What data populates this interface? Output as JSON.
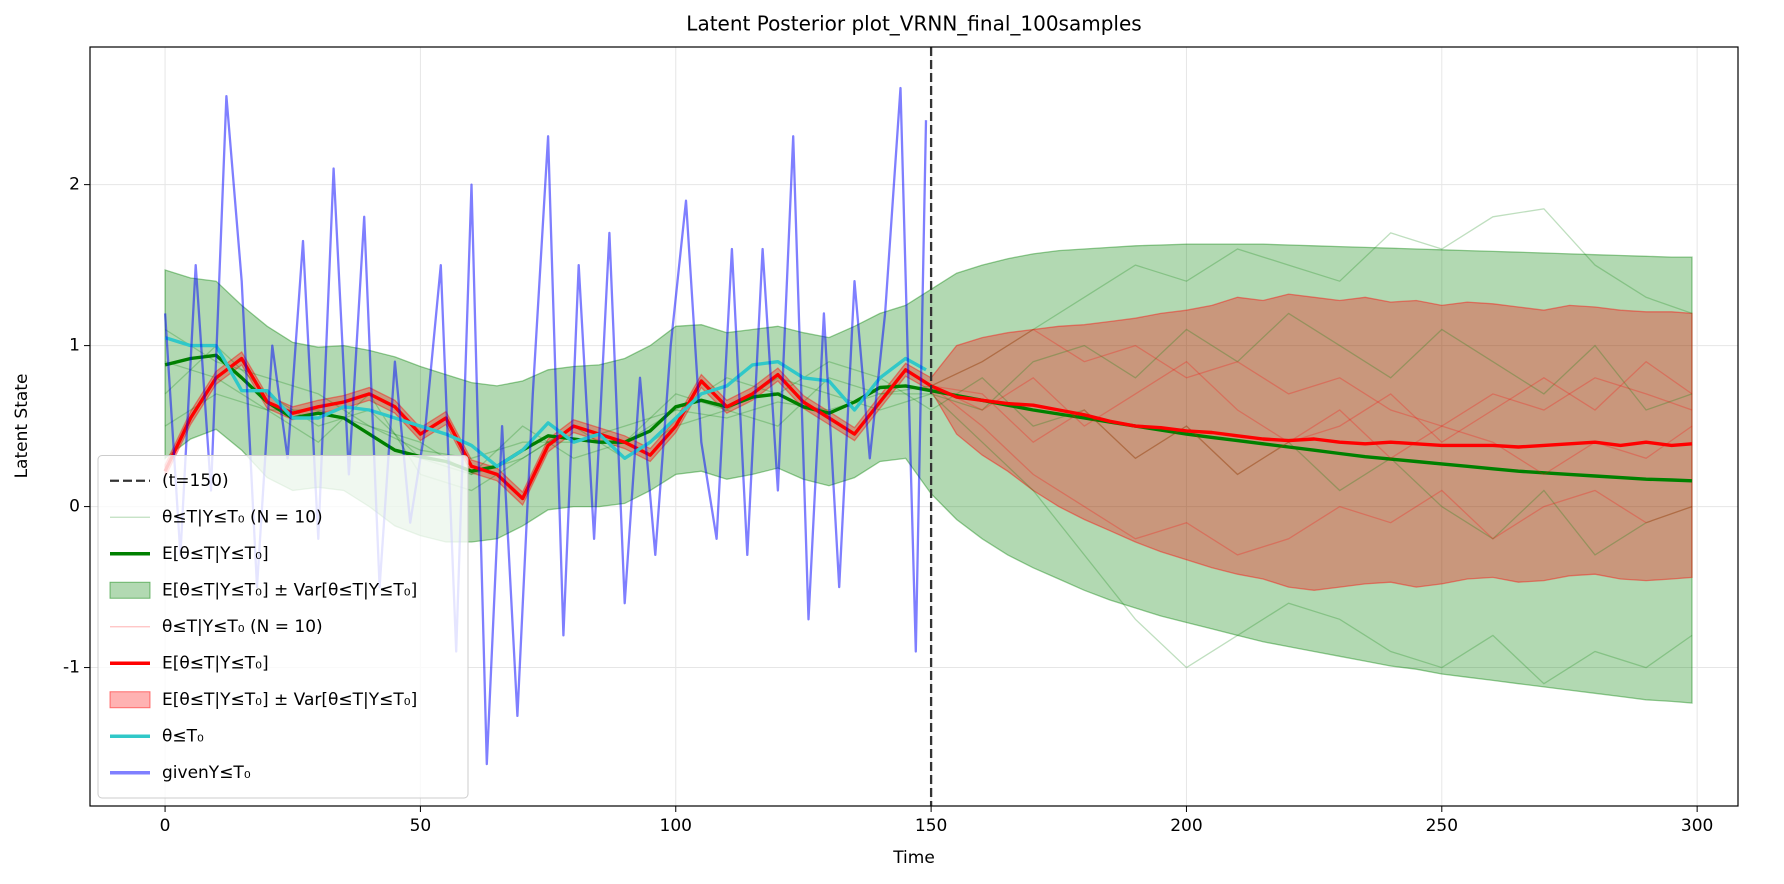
{
  "chart_data": {
    "type": "line",
    "title": "Latent Posterior plot_VRNN_final_100samples",
    "xlabel": "Time",
    "ylabel": "Latent State",
    "xlim": [
      -14.7,
      308
    ],
    "ylim": [
      -1.86,
      2.855
    ],
    "xticks": [
      0,
      50,
      100,
      150,
      200,
      250,
      300
    ],
    "yticks": [
      -1,
      0,
      1,
      2
    ],
    "grid": true,
    "legend": "lower left",
    "vline": {
      "name": "(t=150)",
      "x": 150,
      "color": "#333333"
    },
    "x": [
      0,
      5,
      10,
      15,
      20,
      25,
      30,
      35,
      40,
      45,
      50,
      55,
      60,
      65,
      70,
      75,
      80,
      85,
      90,
      95,
      100,
      105,
      110,
      115,
      120,
      125,
      130,
      135,
      140,
      145,
      150,
      155,
      160,
      165,
      170,
      175,
      180,
      185,
      190,
      195,
      200,
      205,
      210,
      215,
      220,
      225,
      230,
      235,
      240,
      245,
      250,
      255,
      260,
      265,
      270,
      275,
      280,
      285,
      290,
      295,
      299
    ],
    "series": [
      {
        "kind": "samples",
        "name": "θ≤T|Y≤T₀ (N = 10)",
        "color": "#008000",
        "alpha": 0.25,
        "x": [
          0,
          10,
          20,
          30,
          40,
          50,
          60,
          70,
          80,
          90,
          100,
          110,
          120,
          130,
          140,
          150,
          160,
          170,
          180,
          190,
          200,
          210,
          220,
          230,
          240,
          250,
          260,
          270,
          280,
          290,
          299
        ],
        "samples": [
          [
            0.9,
            0.8,
            0.6,
            0.6,
            0.5,
            0.35,
            0.3,
            0.4,
            0.4,
            0.5,
            0.6,
            0.55,
            0.65,
            0.6,
            0.7,
            0.75,
            0.9,
            1.1,
            1.3,
            1.5,
            1.4,
            1.6,
            1.5,
            1.4,
            1.7,
            1.6,
            1.8,
            1.85,
            1.5,
            1.3,
            1.2
          ],
          [
            0.7,
            1.0,
            0.7,
            0.5,
            0.6,
            0.3,
            0.2,
            0.3,
            0.5,
            0.4,
            0.7,
            0.6,
            0.8,
            0.7,
            0.6,
            0.7,
            0.4,
            0.1,
            -0.3,
            -0.7,
            -1.0,
            -0.8,
            -0.6,
            -0.7,
            -0.9,
            -1.0,
            -0.8,
            -1.1,
            -0.9,
            -1.0,
            -0.8
          ],
          [
            1.1,
            0.9,
            0.8,
            0.7,
            0.5,
            0.4,
            0.2,
            0.5,
            0.3,
            0.4,
            0.6,
            0.8,
            0.7,
            0.9,
            0.8,
            0.6,
            0.8,
            0.5,
            0.6,
            0.3,
            0.5,
            0.2,
            0.4,
            0.1,
            0.3,
            0.0,
            -0.2,
            0.1,
            -0.3,
            -0.1,
            0.0
          ],
          [
            0.5,
            0.7,
            0.6,
            0.4,
            0.7,
            0.2,
            0.1,
            0.3,
            0.5,
            0.3,
            0.5,
            0.6,
            0.5,
            0.8,
            0.7,
            0.7,
            0.6,
            0.9,
            1.0,
            0.8,
            1.1,
            0.9,
            1.2,
            1.0,
            0.8,
            1.1,
            0.9,
            0.7,
            1.0,
            0.6,
            0.7
          ]
        ]
      },
      {
        "kind": "line",
        "name": "E[θ≤T|Y≤T₀]",
        "color": "#008000",
        "alpha": 1,
        "values": [
          0.88,
          0.92,
          0.94,
          0.8,
          0.65,
          0.55,
          0.58,
          0.55,
          0.45,
          0.35,
          0.31,
          0.28,
          0.22,
          0.25,
          0.35,
          0.44,
          0.42,
          0.4,
          0.4,
          0.47,
          0.62,
          0.66,
          0.62,
          0.68,
          0.7,
          0.62,
          0.58,
          0.65,
          0.74,
          0.75,
          0.72,
          0.69,
          0.66,
          0.63,
          0.6,
          0.575,
          0.55,
          0.525,
          0.5,
          0.475,
          0.45,
          0.43,
          0.41,
          0.39,
          0.37,
          0.35,
          0.33,
          0.31,
          0.295,
          0.28,
          0.265,
          0.25,
          0.235,
          0.22,
          0.21,
          0.2,
          0.19,
          0.18,
          0.17,
          0.165,
          0.16
        ]
      },
      {
        "kind": "band",
        "name": "E[θ≤T|Y≤T₀] ± Var[θ≤T|Y≤T₀]",
        "color": "#008000",
        "alpha": 0.3,
        "upper": [
          1.47,
          1.42,
          1.4,
          1.25,
          1.12,
          1.02,
          0.99,
          1.0,
          0.97,
          0.93,
          0.87,
          0.82,
          0.77,
          0.75,
          0.78,
          0.85,
          0.87,
          0.88,
          0.92,
          1.0,
          1.12,
          1.13,
          1.08,
          1.1,
          1.12,
          1.08,
          1.05,
          1.12,
          1.2,
          1.25,
          1.35,
          1.45,
          1.5,
          1.54,
          1.57,
          1.59,
          1.6,
          1.61,
          1.62,
          1.625,
          1.63,
          1.63,
          1.63,
          1.63,
          1.625,
          1.62,
          1.615,
          1.61,
          1.605,
          1.6,
          1.595,
          1.59,
          1.585,
          1.58,
          1.575,
          1.57,
          1.565,
          1.56,
          1.555,
          1.55,
          1.55
        ],
        "lower": [
          0.3,
          0.42,
          0.48,
          0.35,
          0.18,
          0.1,
          0.12,
          0.1,
          0.0,
          -0.12,
          -0.18,
          -0.22,
          -0.22,
          -0.2,
          -0.12,
          -0.02,
          0.0,
          0.0,
          0.02,
          0.1,
          0.2,
          0.22,
          0.17,
          0.2,
          0.24,
          0.17,
          0.13,
          0.18,
          0.28,
          0.3,
          0.08,
          -0.08,
          -0.2,
          -0.3,
          -0.38,
          -0.45,
          -0.52,
          -0.58,
          -0.63,
          -0.68,
          -0.72,
          -0.76,
          -0.8,
          -0.84,
          -0.87,
          -0.9,
          -0.93,
          -0.96,
          -0.99,
          -1.01,
          -1.04,
          -1.06,
          -1.08,
          -1.1,
          -1.12,
          -1.14,
          -1.16,
          -1.18,
          -1.2,
          -1.21,
          -1.22
        ]
      },
      {
        "kind": "samples",
        "name": "θ≤T|Y≤T₀ (N = 10)",
        "color": "#ff0000",
        "alpha": 0.25,
        "x": [
          150,
          160,
          170,
          180,
          190,
          200,
          210,
          220,
          230,
          240,
          250,
          260,
          270,
          280,
          290,
          299
        ],
        "samples": [
          [
            0.75,
            0.9,
            1.1,
            0.9,
            1.0,
            0.8,
            0.9,
            0.7,
            0.8,
            0.6,
            0.5,
            0.7,
            0.6,
            0.8,
            0.7,
            0.6
          ],
          [
            0.75,
            0.5,
            0.2,
            0.0,
            -0.2,
            -0.1,
            -0.3,
            -0.2,
            0.0,
            -0.1,
            0.1,
            -0.2,
            0.0,
            0.1,
            -0.1,
            0.0
          ],
          [
            0.75,
            0.6,
            0.8,
            0.5,
            0.7,
            0.9,
            0.6,
            0.4,
            0.6,
            0.3,
            0.5,
            0.4,
            0.2,
            0.4,
            0.3,
            0.5
          ],
          [
            0.75,
            0.7,
            0.4,
            0.6,
            0.3,
            0.5,
            0.2,
            0.4,
            0.5,
            0.7,
            0.4,
            0.6,
            0.8,
            0.6,
            0.9,
            0.7
          ]
        ]
      },
      {
        "kind": "line",
        "name": "E[θ≤T|Y≤T₀]",
        "color": "#ff0000",
        "alpha": 1,
        "values": [
          0.22,
          0.55,
          0.8,
          0.92,
          0.65,
          0.58,
          0.62,
          0.65,
          0.7,
          0.62,
          0.45,
          0.55,
          0.25,
          0.2,
          0.05,
          0.38,
          0.5,
          0.45,
          0.4,
          0.32,
          0.5,
          0.78,
          0.62,
          0.7,
          0.82,
          0.65,
          0.55,
          0.45,
          0.65,
          0.85,
          0.75,
          0.68,
          0.66,
          0.64,
          0.63,
          0.6,
          0.57,
          0.53,
          0.5,
          0.49,
          0.47,
          0.46,
          0.44,
          0.42,
          0.41,
          0.42,
          0.4,
          0.39,
          0.4,
          0.39,
          0.38,
          0.38,
          0.38,
          0.37,
          0.38,
          0.39,
          0.4,
          0.38,
          0.4,
          0.38,
          0.39
        ]
      },
      {
        "kind": "band",
        "name": "E[θ≤T|Y≤T₀] ± Var[θ≤T|Y≤T₀]",
        "color": "#ff0000",
        "alpha": 0.3,
        "upper": [
          0.26,
          0.59,
          0.84,
          0.96,
          0.69,
          0.62,
          0.66,
          0.69,
          0.74,
          0.66,
          0.49,
          0.59,
          0.29,
          0.24,
          0.09,
          0.42,
          0.54,
          0.49,
          0.44,
          0.36,
          0.54,
          0.82,
          0.66,
          0.74,
          0.86,
          0.69,
          0.59,
          0.49,
          0.69,
          0.89,
          0.8,
          1.0,
          1.05,
          1.08,
          1.1,
          1.12,
          1.13,
          1.15,
          1.17,
          1.2,
          1.22,
          1.25,
          1.3,
          1.28,
          1.32,
          1.3,
          1.28,
          1.3,
          1.27,
          1.28,
          1.25,
          1.27,
          1.26,
          1.24,
          1.22,
          1.25,
          1.24,
          1.22,
          1.21,
          1.21,
          1.2
        ],
        "lower": [
          0.18,
          0.51,
          0.76,
          0.88,
          0.61,
          0.54,
          0.58,
          0.61,
          0.66,
          0.58,
          0.41,
          0.51,
          0.21,
          0.16,
          0.01,
          0.34,
          0.46,
          0.41,
          0.36,
          0.28,
          0.46,
          0.74,
          0.58,
          0.66,
          0.78,
          0.61,
          0.51,
          0.41,
          0.61,
          0.81,
          0.72,
          0.45,
          0.32,
          0.22,
          0.1,
          0.0,
          -0.08,
          -0.15,
          -0.22,
          -0.28,
          -0.33,
          -0.38,
          -0.42,
          -0.45,
          -0.5,
          -0.52,
          -0.5,
          -0.48,
          -0.47,
          -0.5,
          -0.48,
          -0.45,
          -0.44,
          -0.47,
          -0.46,
          -0.43,
          -0.42,
          -0.45,
          -0.46,
          -0.45,
          -0.44
        ]
      },
      {
        "kind": "line",
        "name": "θ≤T₀",
        "color": "#30c8c8",
        "alpha": 1,
        "x": [
          0,
          5,
          10,
          15,
          20,
          25,
          30,
          35,
          40,
          45,
          50,
          55,
          60,
          65,
          70,
          75,
          80,
          85,
          90,
          95,
          100,
          105,
          110,
          115,
          120,
          125,
          130,
          135,
          140,
          145,
          149
        ],
        "values": [
          1.05,
          1.0,
          1.0,
          0.72,
          0.72,
          0.55,
          0.55,
          0.62,
          0.6,
          0.55,
          0.5,
          0.45,
          0.38,
          0.25,
          0.35,
          0.52,
          0.4,
          0.45,
          0.3,
          0.4,
          0.55,
          0.7,
          0.75,
          0.88,
          0.9,
          0.8,
          0.78,
          0.6,
          0.8,
          0.92,
          0.85
        ]
      },
      {
        "kind": "line",
        "name": "givenY≤T₀",
        "color": "#0000ff",
        "alpha": 0.5,
        "x": [
          0,
          3,
          6,
          9,
          12,
          15,
          18,
          21,
          24,
          27,
          30,
          33,
          36,
          39,
          42,
          45,
          48,
          51,
          54,
          57,
          60,
          63,
          66,
          69,
          72,
          75,
          78,
          81,
          84,
          87,
          90,
          93,
          96,
          99,
          102,
          105,
          108,
          111,
          114,
          117,
          120,
          123,
          126,
          129,
          132,
          135,
          138,
          141,
          144,
          147,
          149
        ],
        "values": [
          1.2,
          -0.3,
          1.5,
          0.1,
          2.55,
          1.4,
          -0.5,
          1.0,
          0.3,
          1.65,
          -0.2,
          2.1,
          0.2,
          1.8,
          -0.5,
          0.9,
          -0.1,
          0.5,
          1.5,
          -0.9,
          2.0,
          -1.6,
          0.5,
          -1.3,
          0.7,
          2.3,
          -0.8,
          1.5,
          -0.2,
          1.7,
          -0.6,
          0.8,
          -0.3,
          1.0,
          1.9,
          0.4,
          -0.2,
          1.6,
          -0.3,
          1.6,
          0.1,
          2.3,
          -0.7,
          1.2,
          -0.5,
          1.4,
          0.3,
          1.2,
          2.6,
          -0.9,
          2.4
        ]
      }
    ]
  }
}
